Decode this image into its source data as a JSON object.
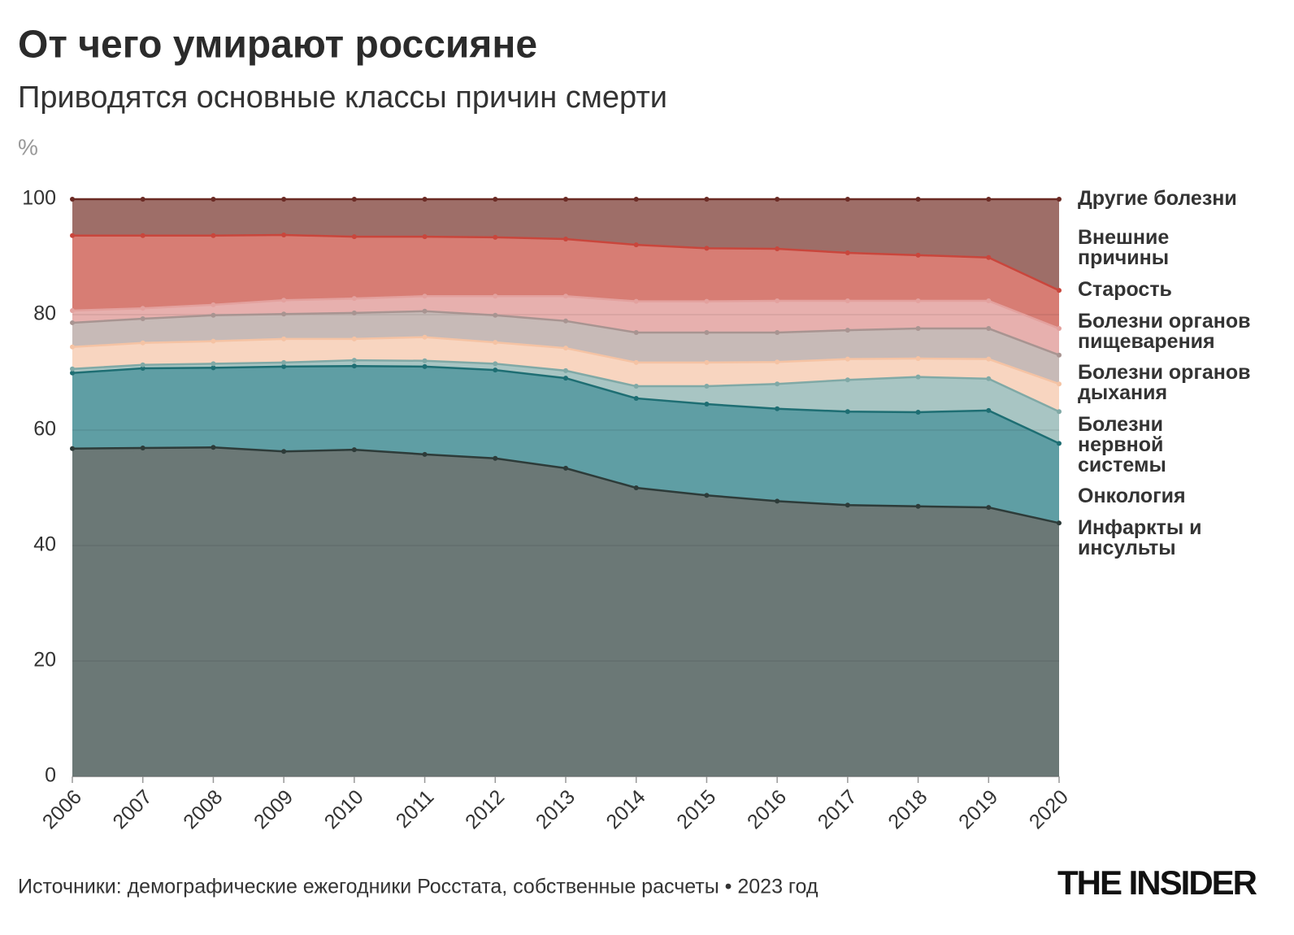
{
  "chart_data": {
    "type": "stacked_area",
    "title": "От чего умирают россияне",
    "subtitle": "Приводятся основные классы причин смерти",
    "ylabel": "%",
    "source": "Источники: демографические ежегодники Росстата, собственные расчеты • 2023 год",
    "brand": "THE INSIDER",
    "x": [
      2006,
      2007,
      2008,
      2009,
      2010,
      2011,
      2012,
      2013,
      2014,
      2015,
      2016,
      2017,
      2018,
      2019,
      2020
    ],
    "xlim": [
      2006,
      2020
    ],
    "xticks": [
      2006,
      2007,
      2008,
      2009,
      2010,
      2011,
      2012,
      2013,
      2014,
      2015,
      2016,
      2017,
      2018,
      2019,
      2020
    ],
    "ylim": [
      0,
      100
    ],
    "yticks": [
      0,
      20,
      40,
      60,
      80,
      100
    ],
    "grid": true,
    "series": [
      {
        "name": "Инфаркты и инсульты",
        "color": "#6b7876",
        "line_color": "#2d3b39",
        "label_color": "#24302f",
        "values": [
          56.8,
          56.9,
          57.0,
          56.3,
          56.6,
          55.8,
          55.1,
          53.4,
          50.0,
          48.7,
          47.7,
          47.0,
          46.8,
          46.6,
          43.9
        ]
      },
      {
        "name": "Онкология",
        "color": "#5f9ea4",
        "line_color": "#1e6e73",
        "label_color": "#1e6e73",
        "values": [
          13.1,
          13.8,
          13.8,
          14.7,
          14.5,
          15.2,
          15.3,
          15.6,
          15.5,
          15.8,
          16.0,
          16.2,
          16.3,
          16.8,
          13.8
        ]
      },
      {
        "name": "Болезни нервной системы",
        "color": "#a8c5c3",
        "line_color": "#80a9a6",
        "label_color": "#7ea6a3",
        "values": [
          0.7,
          0.6,
          0.7,
          0.7,
          1.0,
          1.0,
          1.1,
          1.3,
          2.1,
          3.1,
          4.3,
          5.5,
          6.1,
          5.5,
          5.5
        ]
      },
      {
        "name": "Болезни органов дыхания",
        "color": "#f8d5c0",
        "line_color": "#f5c3a4",
        "label_color": "#f2b48f",
        "values": [
          3.8,
          3.8,
          3.9,
          4.1,
          3.7,
          4.1,
          3.7,
          3.9,
          4.1,
          4.1,
          3.8,
          3.6,
          3.2,
          3.4,
          4.8
        ]
      },
      {
        "name": "Болезни органов пищеварения",
        "color": "#c7bab7",
        "line_color": "#a89491",
        "label_color": "#a08a87",
        "values": [
          4.2,
          4.2,
          4.5,
          4.3,
          4.5,
          4.5,
          4.7,
          4.7,
          5.2,
          5.2,
          5.1,
          5.0,
          5.2,
          5.3,
          5.0
        ]
      },
      {
        "name": "Старость",
        "color": "#e7b0ae",
        "line_color": "#e3a19e",
        "label_color": "#de938f",
        "values": [
          2.1,
          1.8,
          1.8,
          2.4,
          2.5,
          2.6,
          3.3,
          4.3,
          5.4,
          5.4,
          5.5,
          5.1,
          4.8,
          4.8,
          4.6
        ]
      },
      {
        "name": "Внешние причины",
        "color": "#d77d74",
        "line_color": "#c9463c",
        "label_color": "#c2443a",
        "values": [
          13.0,
          12.6,
          12.0,
          11.3,
          10.7,
          10.3,
          10.2,
          9.9,
          9.8,
          9.2,
          9.0,
          8.3,
          7.9,
          7.5,
          6.6
        ]
      },
      {
        "name": "Другие болезни",
        "color": "#9e6e68",
        "line_color": "#6b2a24",
        "label_color": "#6b2a24",
        "values": [
          6.3,
          6.3,
          6.3,
          6.2,
          6.5,
          6.5,
          6.6,
          6.9,
          7.9,
          8.5,
          8.6,
          9.3,
          9.7,
          10.1,
          15.8
        ]
      }
    ]
  }
}
